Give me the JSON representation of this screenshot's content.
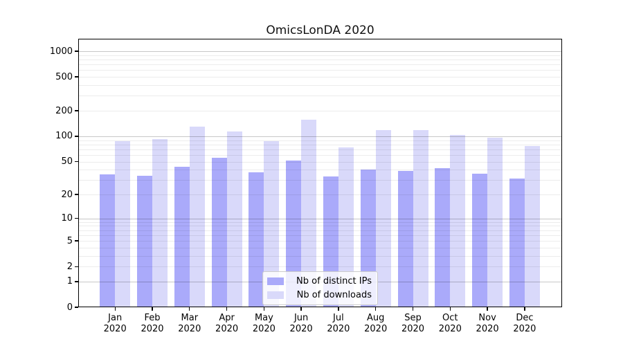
{
  "chart_data": {
    "type": "bar",
    "title": "OmicsLonDA 2020",
    "yscale": "log1p",
    "ylim": [
      0,
      1400
    ],
    "yticks": [
      0,
      1,
      2,
      5,
      10,
      20,
      50,
      100,
      200,
      500,
      1000
    ],
    "grid": "horizontal, log-spaced major (1,10,100,1000) and minor (2-9 per decade)",
    "legend_position": "lower center inside plot",
    "categories": [
      {
        "month": "Jan",
        "year": "2020"
      },
      {
        "month": "Feb",
        "year": "2020"
      },
      {
        "month": "Mar",
        "year": "2020"
      },
      {
        "month": "Apr",
        "year": "2020"
      },
      {
        "month": "May",
        "year": "2020"
      },
      {
        "month": "Jun",
        "year": "2020"
      },
      {
        "month": "Jul",
        "year": "2020"
      },
      {
        "month": "Aug",
        "year": "2020"
      },
      {
        "month": "Sep",
        "year": "2020"
      },
      {
        "month": "Oct",
        "year": "2020"
      },
      {
        "month": "Nov",
        "year": "2020"
      },
      {
        "month": "Dec",
        "year": "2020"
      }
    ],
    "series": [
      {
        "key": "distinct-ips",
        "name": "Nb of distinct IPs",
        "color": "#aaaafa",
        "values": [
          35,
          34,
          43,
          56,
          37,
          51,
          33,
          40,
          39,
          42,
          36,
          31
        ]
      },
      {
        "key": "downloads",
        "name": "Nb of downloads",
        "color": "#d9d9fa",
        "values": [
          87,
          93,
          129,
          114,
          88,
          157,
          74,
          118,
          118,
          103,
          96,
          77
        ]
      }
    ]
  },
  "colors": {
    "background": "#ffffff",
    "axis": "#000000",
    "grid_major": "#c6c6c6",
    "grid_minor": "#ededed",
    "legend_border": "#cccccc",
    "title_text": "#111111"
  }
}
